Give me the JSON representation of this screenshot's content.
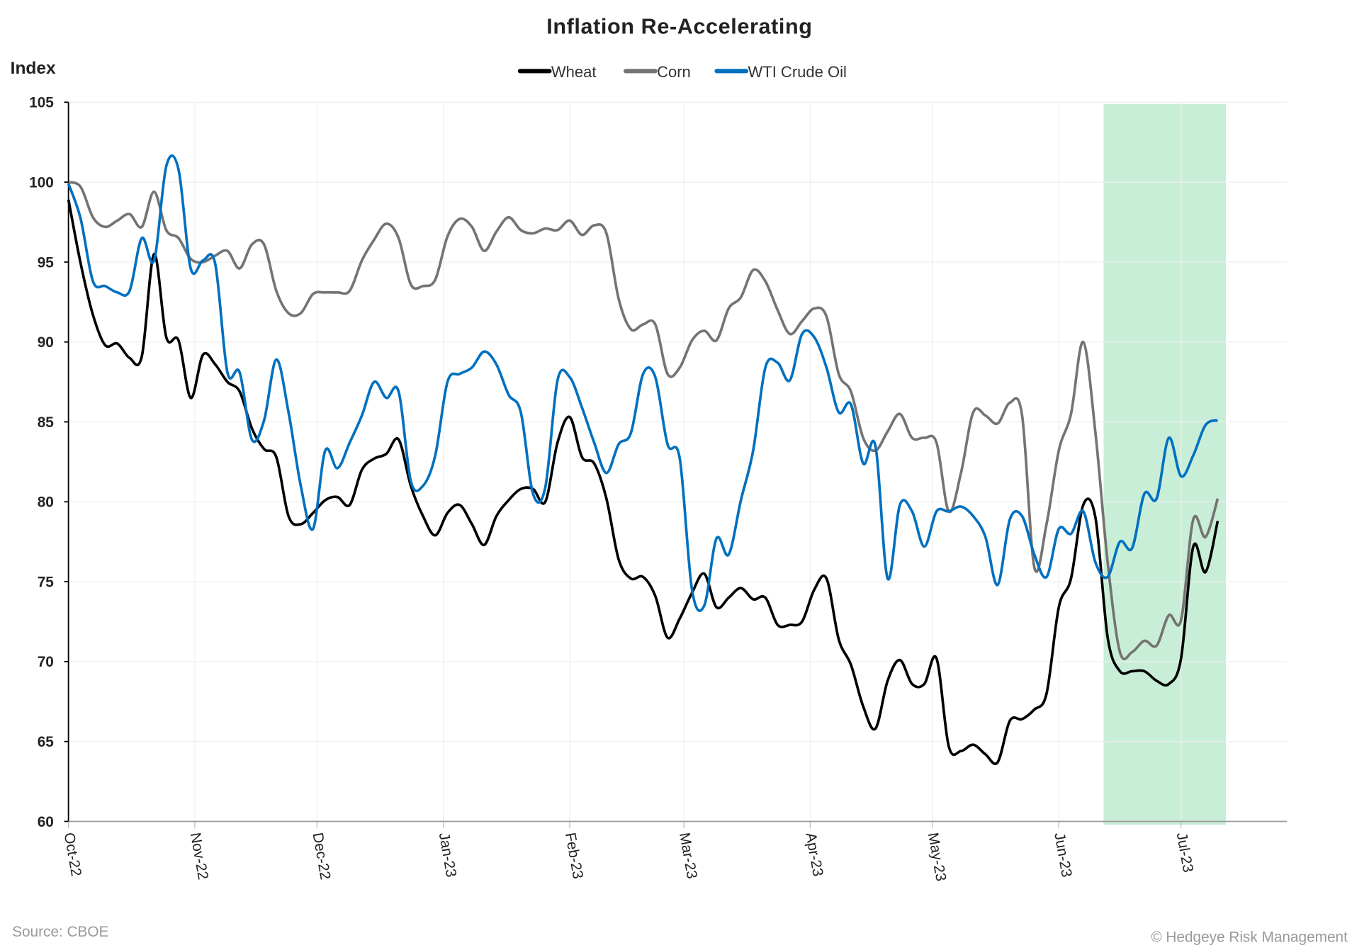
{
  "chart_data": {
    "type": "line",
    "title": "Inflation Re-Accelerating",
    "ylabel": "Index",
    "xlabel": "",
    "ylim": [
      60,
      105
    ],
    "yticks": [
      60,
      65,
      70,
      75,
      80,
      85,
      90,
      95,
      100,
      105
    ],
    "xlim": [
      "2022-10-01",
      "2023-07-27"
    ],
    "xticks": [
      {
        "date": "2022-10-01",
        "label": "Oct-22"
      },
      {
        "date": "2022-11-01",
        "label": "Nov-22"
      },
      {
        "date": "2022-12-01",
        "label": "Dec-22"
      },
      {
        "date": "2023-01-01",
        "label": "Jan-23"
      },
      {
        "date": "2023-02-01",
        "label": "Feb-23"
      },
      {
        "date": "2023-03-01",
        "label": "Mar-23"
      },
      {
        "date": "2023-04-01",
        "label": "Apr-23"
      },
      {
        "date": "2023-05-01",
        "label": "May-23"
      },
      {
        "date": "2023-06-01",
        "label": "Jun-23"
      },
      {
        "date": "2023-07-01",
        "label": "Jul-23"
      }
    ],
    "grid": true,
    "legend_position": "top-center",
    "highlight_band": {
      "start": "2023-06-12",
      "end": "2023-07-12",
      "color": "#c9eed8"
    },
    "x": [
      "2022-10-01",
      "2022-10-04",
      "2022-10-07",
      "2022-10-10",
      "2022-10-13",
      "2022-10-16",
      "2022-10-19",
      "2022-10-22",
      "2022-10-25",
      "2022-10-28",
      "2022-10-31",
      "2022-11-03",
      "2022-11-06",
      "2022-11-09",
      "2022-11-12",
      "2022-11-15",
      "2022-11-18",
      "2022-11-21",
      "2022-11-24",
      "2022-11-27",
      "2022-11-30",
      "2022-12-03",
      "2022-12-06",
      "2022-12-09",
      "2022-12-12",
      "2022-12-15",
      "2022-12-18",
      "2022-12-21",
      "2022-12-24",
      "2022-12-27",
      "2022-12-30",
      "2023-01-02",
      "2023-01-05",
      "2023-01-08",
      "2023-01-11",
      "2023-01-14",
      "2023-01-17",
      "2023-01-20",
      "2023-01-23",
      "2023-01-26",
      "2023-01-29",
      "2023-02-01",
      "2023-02-04",
      "2023-02-07",
      "2023-02-10",
      "2023-02-13",
      "2023-02-16",
      "2023-02-19",
      "2023-02-22",
      "2023-02-25",
      "2023-02-28",
      "2023-03-03",
      "2023-03-06",
      "2023-03-09",
      "2023-03-12",
      "2023-03-15",
      "2023-03-18",
      "2023-03-21",
      "2023-03-24",
      "2023-03-27",
      "2023-03-30",
      "2023-04-02",
      "2023-04-05",
      "2023-04-08",
      "2023-04-11",
      "2023-04-14",
      "2023-04-17",
      "2023-04-20",
      "2023-04-23",
      "2023-04-26",
      "2023-04-29",
      "2023-05-02",
      "2023-05-05",
      "2023-05-08",
      "2023-05-11",
      "2023-05-14",
      "2023-05-17",
      "2023-05-20",
      "2023-05-23",
      "2023-05-26",
      "2023-05-29",
      "2023-06-01",
      "2023-06-04",
      "2023-06-07",
      "2023-06-10",
      "2023-06-13",
      "2023-06-16",
      "2023-06-19",
      "2023-06-22",
      "2023-06-25",
      "2023-06-28",
      "2023-07-01",
      "2023-07-04",
      "2023-07-07",
      "2023-07-10"
    ],
    "series": [
      {
        "name": "Wheat",
        "color": "#000000",
        "values": [
          98.9,
          94.9,
          91.7,
          89.8,
          89.9,
          89.0,
          89.1,
          95.5,
          90.3,
          90.1,
          86.5,
          89.2,
          88.6,
          87.5,
          86.9,
          84.6,
          83.3,
          82.8,
          79.1,
          78.6,
          79.3,
          80.1,
          80.3,
          79.8,
          82.0,
          82.7,
          83.0,
          83.9,
          81.0,
          79.1,
          77.9,
          79.3,
          79.8,
          78.6,
          77.3,
          79.1,
          80.1,
          80.8,
          80.8,
          80.0,
          83.7,
          85.3,
          82.8,
          82.4,
          80.2,
          76.4,
          75.2,
          75.3,
          74.1,
          71.5,
          72.7,
          74.3,
          75.5,
          73.4,
          74.0,
          74.6,
          73.9,
          74.0,
          72.3,
          72.3,
          72.5,
          74.5,
          75.2,
          71.4,
          69.8,
          67.2,
          65.8,
          68.8,
          70.1,
          68.6,
          68.6,
          70.2,
          64.7,
          64.4,
          64.8,
          64.2,
          63.7,
          66.3,
          66.4,
          67.0,
          68.0,
          73.4,
          75.2,
          79.8,
          79.0,
          71.5,
          69.4,
          69.4,
          69.4,
          68.8,
          68.6,
          70.2,
          77.2,
          75.6,
          78.8
        ]
      },
      {
        "name": "Corn",
        "color": "#757373",
        "values": [
          100.0,
          99.7,
          97.8,
          97.2,
          97.6,
          98.0,
          97.2,
          99.4,
          97.0,
          96.5,
          95.2,
          95.0,
          95.4,
          95.7,
          94.6,
          96.1,
          96.1,
          93.2,
          91.8,
          91.8,
          93.0,
          93.1,
          93.1,
          93.2,
          95.1,
          96.4,
          97.4,
          96.5,
          93.6,
          93.5,
          93.9,
          96.6,
          97.7,
          97.2,
          95.7,
          96.9,
          97.8,
          97.0,
          96.8,
          97.1,
          97.0,
          97.6,
          96.7,
          97.3,
          96.8,
          92.7,
          90.8,
          91.1,
          91.1,
          88.0,
          88.4,
          90.1,
          90.7,
          90.1,
          92.1,
          92.8,
          94.5,
          93.8,
          92.0,
          90.5,
          91.3,
          92.1,
          91.6,
          88.0,
          86.9,
          84.0,
          83.2,
          84.4,
          85.5,
          84.0,
          84.0,
          83.7,
          79.4,
          81.8,
          85.6,
          85.4,
          84.9,
          86.2,
          85.4,
          75.9,
          78.6,
          83.2,
          85.5,
          90.0,
          84.3,
          76.2,
          70.6,
          70.6,
          71.3,
          71.0,
          72.9,
          72.6,
          78.9,
          77.8,
          80.2
        ]
      },
      {
        "name": "WTI Crude Oil",
        "color": "#0070c0",
        "values": [
          99.9,
          97.7,
          93.8,
          93.5,
          93.1,
          93.2,
          96.5,
          95.1,
          101.0,
          100.8,
          94.6,
          95.1,
          94.9,
          88.1,
          88.1,
          83.9,
          85.1,
          88.9,
          85.6,
          81.0,
          78.3,
          83.2,
          82.1,
          83.7,
          85.4,
          87.5,
          86.5,
          86.9,
          81.3,
          81.0,
          82.9,
          87.5,
          88.0,
          88.4,
          89.4,
          88.6,
          86.7,
          85.6,
          80.5,
          80.9,
          87.6,
          87.8,
          85.9,
          83.7,
          81.8,
          83.6,
          84.3,
          88.0,
          87.8,
          83.6,
          82.7,
          74.5,
          73.5,
          77.7,
          76.7,
          80.1,
          83.2,
          88.4,
          88.7,
          87.6,
          90.5,
          90.3,
          88.4,
          85.6,
          86.1,
          82.4,
          83.5,
          75.2,
          79.8,
          79.4,
          77.2,
          79.4,
          79.4,
          79.7,
          79.1,
          77.8,
          74.8,
          78.9,
          79.1,
          76.7,
          75.3,
          78.3,
          78.0,
          79.4,
          76.2,
          75.3,
          77.5,
          77.1,
          80.5,
          80.2,
          84.0,
          81.6,
          82.9,
          84.8,
          85.1
        ]
      }
    ]
  },
  "footer": {
    "source": "Source: CBOE",
    "copyright": "© Hedgeye Risk Management"
  }
}
